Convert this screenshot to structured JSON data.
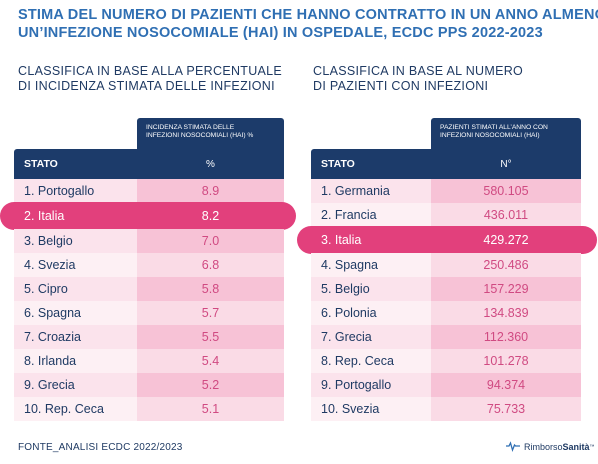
{
  "title": {
    "line1": "STIMA DEL NUMERO DI PAZIENTI CHE HANNO CONTRATTO IN UN ANNO ALMENO",
    "line2": "UN’INFEZIONE NOSOCOMIALE (HAI) IN OSPEDALE, ECDC PPS 2022-2023"
  },
  "left": {
    "subtitle": [
      "CLASSIFICA IN BASE ALLA PERCENTUALE",
      "DI INCIDENZA STIMATA DELLE INFEZIONI"
    ],
    "value_header": [
      "INCIDENZA STIMATA DELLE",
      "INFEZIONI NOSOCOMIALI (HAI) %"
    ],
    "col_state": "STATO",
    "col_value": "%"
  },
  "right": {
    "subtitle": [
      "CLASSIFICA IN BASE AL NUMERO",
      "DI PAZIENTI CON INFEZIONI"
    ],
    "value_header": [
      "PAZIENTI STIMATI ALL’ANNO CON",
      "INFEZIONI NOSOCOMIALI (HAI)"
    ],
    "col_state": "STATO",
    "col_value": "N°"
  },
  "chart_data": [
    {
      "type": "table",
      "title": "CLASSIFICA IN BASE ALLA PERCENTUALE DI INCIDENZA STIMATA DELLE INFEZIONI",
      "columns": [
        "STATO",
        "%"
      ],
      "highlight_index": 1,
      "rows": [
        {
          "label": "1. Portogallo",
          "value": "8.9"
        },
        {
          "label": "2. Italia",
          "value": "8.2"
        },
        {
          "label": "3. Belgio",
          "value": "7.0"
        },
        {
          "label": "4. Svezia",
          "value": "6.8"
        },
        {
          "label": "5. Cipro",
          "value": "5.8"
        },
        {
          "label": "6. Spagna",
          "value": "5.7"
        },
        {
          "label": "7. Croazia",
          "value": "5.5"
        },
        {
          "label": "8. Irlanda",
          "value": "5.4"
        },
        {
          "label": "9. Grecia",
          "value": "5.2"
        },
        {
          "label": "10. Rep. Ceca",
          "value": "5.1"
        }
      ]
    },
    {
      "type": "table",
      "title": "CLASSIFICA IN BASE AL NUMERO DI PAZIENTI CON INFEZIONI",
      "columns": [
        "STATO",
        "N°"
      ],
      "highlight_index": 2,
      "rows": [
        {
          "label": "1. Germania",
          "value": "580.105"
        },
        {
          "label": "2. Francia",
          "value": "436.011"
        },
        {
          "label": "3. Italia",
          "value": "429.272"
        },
        {
          "label": "4. Spagna",
          "value": "250.486"
        },
        {
          "label": "5. Belgio",
          "value": "157.229"
        },
        {
          "label": "6. Polonia",
          "value": "134.839"
        },
        {
          "label": "7. Grecia",
          "value": "112.360"
        },
        {
          "label": "8. Rep. Ceca",
          "value": "101.278"
        },
        {
          "label": "9. Portogallo",
          "value": "94.374"
        },
        {
          "label": "10. Svezia",
          "value": "75.733"
        }
      ]
    }
  ],
  "footer": "FONTE_ANALISI ECDC 2022/2023",
  "logo": {
    "part1": "Rimborso",
    "part2": "Sanità",
    "mark": "™"
  },
  "colors": {
    "navy": "#1c3b6a",
    "title_blue": "#2f6fb3",
    "highlight": "#e2407c",
    "value_pink": "#d04a82"
  }
}
